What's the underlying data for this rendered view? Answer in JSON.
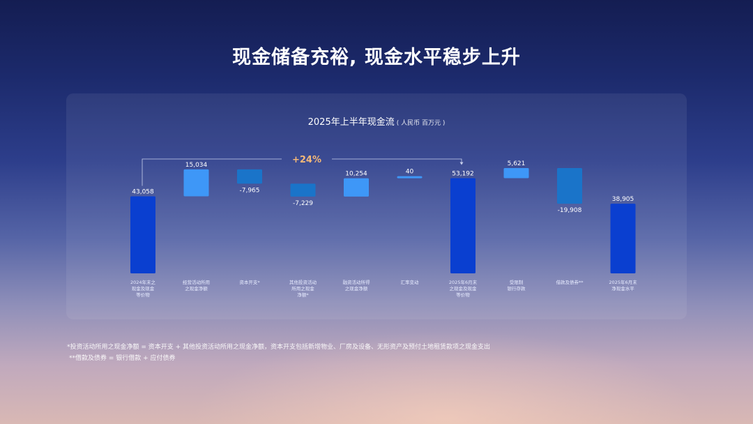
{
  "page": {
    "title": "现金储备充裕, 现金水平稳步上升"
  },
  "chart_data": {
    "type": "bar",
    "subtype": "waterfall",
    "title": "2025年上半年现金流",
    "unit": "( 人民币 百万元 )",
    "categories": [
      "2024年末之 现金及现金 等价物",
      "经营活动所用 之现金净额",
      "资本开支*",
      "其他投资活动 所用之现金 净额*",
      "融资活动所得 之现金净额",
      "汇率变动",
      "2025年6月末 之现金及现金 等价物",
      "受限制 银行存款",
      "借款及债券**",
      "2025年6月末 净现金水平"
    ],
    "category_lines": [
      [
        "2024年末之",
        "现金及现金",
        "等价物"
      ],
      [
        "经营活动所用",
        "之现金净额"
      ],
      [
        "资本开支*"
      ],
      [
        "其他投资活动",
        "所用之现金",
        "净额*"
      ],
      [
        "融资活动所得",
        "之现金净额"
      ],
      [
        "汇率变动"
      ],
      [
        "2025年6月末",
        "之现金及现金",
        "等价物"
      ],
      [
        "受限制",
        "银行存款"
      ],
      [
        "借款及债券**"
      ],
      [
        "2025年6月末",
        "净现金水平"
      ]
    ],
    "values": [
      43058,
      15034,
      -7965,
      -7229,
      10254,
      40,
      53192,
      5621,
      -19908,
      38905
    ],
    "value_labels": [
      "43,058",
      "15,034",
      "-7,965",
      "-7,229",
      "10,254",
      "40",
      "53,192",
      "5,621",
      "-19,908",
      "38,905"
    ],
    "bar_kinds": [
      "total",
      "delta",
      "delta",
      "delta",
      "delta",
      "delta",
      "total",
      "delta",
      "delta",
      "total"
    ],
    "ylim": [
      0,
      60000
    ],
    "annotation": {
      "text": "+24%",
      "from_index": 0,
      "to_index": 6
    },
    "colors": {
      "total": "#0a3fd0",
      "increase": "#3e97f7",
      "decrease": "#1a74c9",
      "annotation": "#f4b878",
      "connector": "#c8d0ec"
    },
    "grid": false,
    "legend": "none"
  },
  "footnotes": [
    "*投资活动所用之现金净额 = 资本开支 + 其他投资活动所用之现金净额，资本开支包括新增物业、厂房及设备、无形资产及预付土地租赁款项之现金支出",
    "**借款及债券 = 银行借款 + 应付债券"
  ]
}
